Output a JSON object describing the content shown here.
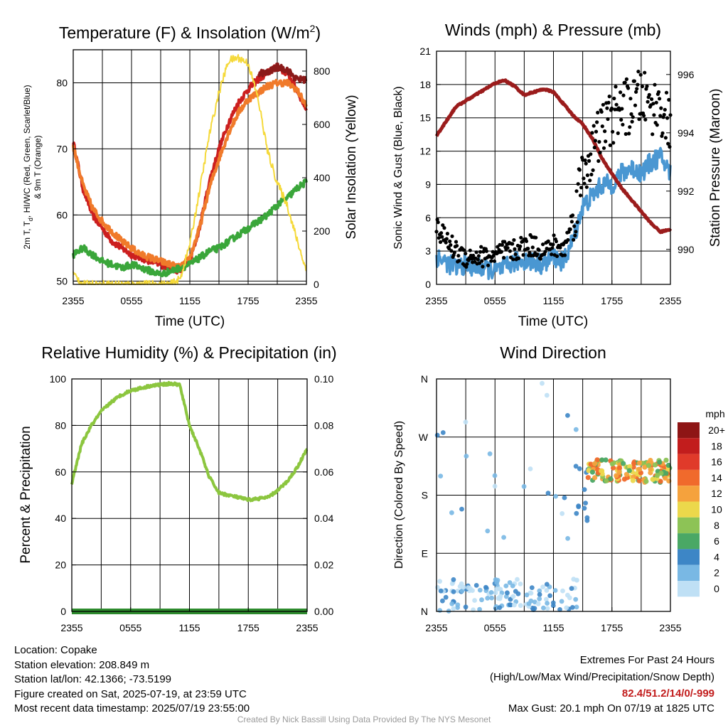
{
  "time_ticks": [
    "2355",
    "0555",
    "1155",
    "1755",
    "2355"
  ],
  "chart_data": [
    {
      "type": "line",
      "title": "Temperature (F) & Insolation (W/m",
      "title_sup": "2",
      "title_end": ")",
      "xlabel": "Time (UTC)",
      "ylabel_left_line1": "2m T, T",
      "ylabel_left_sub": "d",
      "ylabel_left_line1b": ", HI/WC (Red, Green, Scarlet/Blue)",
      "ylabel_left_line2": "& 9m T (Orange)",
      "ylabel_right": "Solar Insolation (Yellow)",
      "ylim_left": [
        49.5,
        85
      ],
      "yticks_left": [
        "50",
        "60",
        "70",
        "80"
      ],
      "ylim_right": [
        0,
        880
      ],
      "yticks_right": [
        "0",
        "200",
        "400",
        "600",
        "800"
      ],
      "x_hours": [
        0,
        1,
        2,
        3,
        4,
        5,
        6,
        7,
        8,
        9,
        10,
        11,
        12,
        13,
        14,
        15,
        16,
        17,
        18,
        19,
        20,
        21,
        22,
        23,
        24
      ],
      "series": [
        {
          "color": "#cc1f1f",
          "axis": "left",
          "values": [
            71,
            64,
            60,
            58,
            56,
            55,
            54,
            53.5,
            53,
            52.5,
            52,
            51.5,
            53,
            58,
            65,
            70,
            74,
            77,
            79,
            80.5,
            81.5,
            82.4,
            81.5,
            79,
            76
          ]
        },
        {
          "color": "#f07a2a",
          "axis": "left",
          "values": [
            70.5,
            64.5,
            61,
            59,
            57.5,
            56,
            55,
            54,
            53.5,
            53,
            52.5,
            52,
            53.5,
            58,
            64,
            68.5,
            72.5,
            75.5,
            77.5,
            78.5,
            79.5,
            80,
            80,
            79,
            76.5
          ]
        },
        {
          "color": "#3aa63a",
          "axis": "left",
          "values": [
            54,
            55,
            54,
            53,
            52.5,
            52,
            52.5,
            52,
            51.5,
            51,
            51.5,
            52,
            52.5,
            53.5,
            54.5,
            55,
            56,
            57,
            58,
            59,
            60,
            61.5,
            62.5,
            64,
            65
          ]
        },
        {
          "color": "#8b1a1a",
          "axis": "left",
          "values": [
            null,
            null,
            null,
            null,
            null,
            null,
            null,
            null,
            null,
            null,
            null,
            null,
            null,
            null,
            null,
            null,
            null,
            null,
            null,
            null,
            81.5,
            82.4,
            82,
            80.5,
            null
          ]
        },
        {
          "color": "#f5d93a",
          "axis": "right",
          "values": [
            40,
            0,
            0,
            0,
            0,
            0,
            0,
            0,
            0,
            0,
            0,
            20,
            150,
            350,
            560,
            720,
            840,
            850,
            830,
            700,
            500,
            380,
            300,
            170,
            50
          ]
        }
      ]
    },
    {
      "type": "line",
      "title": "Winds (mph) & Pressure (mb)",
      "xlabel": "Time (UTC)",
      "ylabel_left": "Sonic Wind & Gust (Blue, Black)",
      "ylabel_right": "Station Pressure (Maroon)",
      "ylim_left": [
        0,
        21
      ],
      "yticks_left": [
        "0",
        "3",
        "6",
        "9",
        "12",
        "15",
        "18",
        "21"
      ],
      "ylim_right": [
        988.8,
        996.8
      ],
      "yticks_right": [
        "990",
        "992",
        "994",
        "996"
      ],
      "x_hours": [
        0,
        1,
        2,
        3,
        4,
        5,
        6,
        7,
        8,
        9,
        10,
        11,
        12,
        13,
        14,
        15,
        16,
        17,
        18,
        19,
        20,
        21,
        22,
        23,
        24
      ],
      "series": [
        {
          "name": "pressure",
          "color": "#9b1c1c",
          "axis": "right",
          "values": [
            993.9,
            994.4,
            994.9,
            995.1,
            995.3,
            995.5,
            995.7,
            995.8,
            995.6,
            995.3,
            995.4,
            995.5,
            995.4,
            995.0,
            994.6,
            994.3,
            993.8,
            993.1,
            992.6,
            992.1,
            991.7,
            991.3,
            990.9,
            990.6,
            990.7
          ]
        },
        {
          "name": "wind",
          "color": "#4a97d2",
          "axis": "left",
          "values": [
            2.5,
            2,
            1.5,
            1.8,
            1.5,
            1.5,
            1.2,
            1.5,
            2,
            2.2,
            2,
            1.8,
            2.5,
            2,
            4,
            7,
            8,
            9,
            9,
            10,
            10.5,
            10,
            11,
            11.5,
            10
          ]
        },
        {
          "name": "gust",
          "color": "#000000",
          "axis": "left",
          "values": [
            5,
            4,
            3,
            2.5,
            2.5,
            2.5,
            2.5,
            3,
            3,
            3.5,
            3.5,
            3,
            3.5,
            3,
            6,
            10,
            12,
            14,
            15,
            16,
            16,
            17,
            16,
            16,
            14
          ]
        }
      ]
    },
    {
      "type": "line",
      "title": "Relative Humidity (%) & Precipitation (in)",
      "ylabel_left": "Percent & Precipitation",
      "ylim_left": [
        0,
        100
      ],
      "yticks_left": [
        "0",
        "20",
        "40",
        "60",
        "80",
        "100"
      ],
      "ylim_right": [
        0,
        0.1
      ],
      "yticks_right": [
        "0.00",
        "0.02",
        "0.04",
        "0.06",
        "0.08",
        "0.10"
      ],
      "x_hours": [
        0,
        1,
        2,
        3,
        4,
        5,
        6,
        7,
        8,
        9,
        10,
        11,
        12,
        13,
        14,
        15,
        16,
        17,
        18,
        19,
        20,
        21,
        22,
        23,
        24
      ],
      "series": [
        {
          "name": "rh",
          "color": "#8cc63f",
          "axis": "left",
          "values": [
            55,
            72,
            80,
            86,
            90,
            93,
            95,
            96,
            97,
            97.5,
            98,
            97.5,
            80,
            70,
            58,
            51,
            50,
            49,
            48,
            48.5,
            49,
            52,
            56,
            62,
            70
          ]
        },
        {
          "name": "precip",
          "color": "#2e8b2e",
          "axis": "right",
          "values": [
            0,
            0,
            0,
            0,
            0,
            0,
            0,
            0,
            0,
            0,
            0,
            0,
            0,
            0,
            0,
            0,
            0,
            0,
            0,
            0,
            0,
            0,
            0,
            0,
            0
          ]
        }
      ]
    },
    {
      "type": "scatter",
      "title": "Wind Direction",
      "ylabel": "Direction (Colored By Speed)",
      "yticks": [
        "N",
        "E",
        "S",
        "W",
        "N"
      ],
      "colorbar_title": "mph",
      "colorbar_labels": [
        "20+",
        "18",
        "16",
        "14",
        "12",
        "10",
        "8",
        "6",
        "4",
        "2",
        "0"
      ],
      "colorbar_colors": [
        "#8e1515",
        "#c21d1d",
        "#e03a2a",
        "#f06a2c",
        "#f5a23d",
        "#ecd84b",
        "#8dc356",
        "#4aa865",
        "#3d86c6",
        "#79b8e4",
        "#bfe0f5"
      ],
      "series": [
        {
          "name": "early-north",
          "color_index": [
            9,
            10
          ],
          "hours": [
            0,
            4
          ],
          "dir_deg": [
            0,
            30
          ]
        },
        {
          "name": "late-south",
          "color_index": [
            5,
            7
          ],
          "hours": [
            15,
            24
          ],
          "dir_deg": [
            200,
            240
          ]
        }
      ]
    }
  ],
  "footer": {
    "location": "Location: Copake",
    "elevation": "Station elevation: 208.849 m",
    "latlon": "Station lat/lon: 42.1366; -73.5199",
    "created": "Figure created on Sat, 2025-07-19, at 23:59 UTC",
    "recent": "Most recent data timestamp: 2025/07/19 23:55:00",
    "extremes_title": "Extremes For Past 24 Hours",
    "extremes_sub": "(High/Low/Max Wind/Precipitation/Snow Depth)",
    "extremes_values": "82.4/51.2/14/0/-999",
    "max_gust": "Max Gust: 20.1 mph On 07/19 at 1825 UTC",
    "credit": "Created By Nick Bassill Using Data Provided By The NYS Mesonet"
  }
}
